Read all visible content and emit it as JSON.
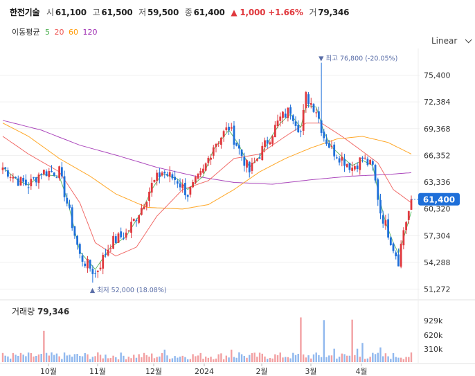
{
  "header": {
    "name": "한전기술",
    "open_label": "시",
    "open": "61,100",
    "high_label": "고",
    "high": "61,500",
    "low_label": "저",
    "low": "59,500",
    "close_label": "종",
    "close": "61,400",
    "change": "▲ 1,000 +1.66%",
    "volume_label": "거",
    "volume": "79,346"
  },
  "ma_legend": {
    "title": "이동평균",
    "ma5": "5",
    "ma20": "20",
    "ma60": "60",
    "ma120": "120"
  },
  "scale_selector": "Linear",
  "volume_panel": {
    "label": "거래량",
    "value": "79,346"
  },
  "colors": {
    "up": "#e0393e",
    "down": "#1e6fd9",
    "ma5": "#4caf50",
    "ma20": "#ef5350",
    "ma60": "#ff9800",
    "ma120": "#9c27b0",
    "price_tag": "#1e6fd9"
  },
  "chart_data": {
    "type": "candlestick",
    "y_ticks": [
      "75,400",
      "72,384",
      "69,368",
      "66,352",
      "63,336",
      "60,320",
      "57,304",
      "54,288",
      "51,272"
    ],
    "y_values": [
      75400,
      72384,
      69368,
      66352,
      63336,
      60320,
      57304,
      54288,
      51272
    ],
    "x_ticks": [
      "10월",
      "11월",
      "12월",
      "2024",
      "2월",
      "3월",
      "4월"
    ],
    "volume_ticks": [
      "929k",
      "620k",
      "310k"
    ],
    "current_price": "61,400",
    "annotations": {
      "high": "최고 76,800 (-20.05%)",
      "low": "최저 52,000 (18.08%)"
    },
    "close_anchors": [
      [
        0,
        65000
      ],
      [
        6,
        63500
      ],
      [
        10,
        63000
      ],
      [
        15,
        64500
      ],
      [
        22,
        64500
      ],
      [
        25,
        61000
      ],
      [
        30,
        55000
      ],
      [
        36,
        53000
      ],
      [
        42,
        56500
      ],
      [
        48,
        57500
      ],
      [
        54,
        60500
      ],
      [
        58,
        63000
      ],
      [
        62,
        64500
      ],
      [
        68,
        63500
      ],
      [
        72,
        62000
      ],
      [
        78,
        64500
      ],
      [
        82,
        67500
      ],
      [
        88,
        69500
      ],
      [
        92,
        67000
      ],
      [
        96,
        64500
      ],
      [
        100,
        66500
      ],
      [
        104,
        68500
      ],
      [
        108,
        70500
      ],
      [
        112,
        71500
      ],
      [
        116,
        69000
      ],
      [
        118,
        73000
      ],
      [
        122,
        71500
      ],
      [
        125,
        68500
      ],
      [
        128,
        67000
      ],
      [
        132,
        66000
      ],
      [
        136,
        65000
      ],
      [
        140,
        66000
      ],
      [
        144,
        65000
      ],
      [
        147,
        60000
      ],
      [
        149,
        58500
      ],
      [
        152,
        56000
      ],
      [
        154,
        54500
      ],
      [
        156,
        58000
      ],
      [
        158,
        60000
      ],
      [
        159,
        61400
      ]
    ],
    "ma_curves": {
      "ma5": [
        [
          0,
          65000
        ],
        [
          6,
          63500
        ],
        [
          10,
          63000
        ],
        [
          15,
          64200
        ],
        [
          22,
          64000
        ],
        [
          25,
          61500
        ],
        [
          30,
          55500
        ],
        [
          36,
          53500
        ],
        [
          42,
          56000
        ],
        [
          48,
          57200
        ],
        [
          54,
          60000
        ],
        [
          58,
          62500
        ],
        [
          62,
          64300
        ],
        [
          68,
          63700
        ],
        [
          72,
          62500
        ],
        [
          78,
          64000
        ],
        [
          82,
          67000
        ],
        [
          88,
          69200
        ],
        [
          92,
          67500
        ],
        [
          96,
          65000
        ],
        [
          100,
          66200
        ],
        [
          104,
          68200
        ],
        [
          108,
          70000
        ],
        [
          112,
          71000
        ],
        [
          116,
          69500
        ],
        [
          118,
          72000
        ],
        [
          122,
          71800
        ],
        [
          125,
          69000
        ],
        [
          128,
          67300
        ],
        [
          132,
          66200
        ],
        [
          136,
          65200
        ],
        [
          140,
          65800
        ],
        [
          144,
          65200
        ],
        [
          147,
          61000
        ],
        [
          149,
          58800
        ],
        [
          152,
          56500
        ],
        [
          154,
          55300
        ],
        [
          156,
          57000
        ],
        [
          158,
          59000
        ],
        [
          159,
          60000
        ]
      ],
      "ma20": [
        [
          0,
          68500
        ],
        [
          10,
          66500
        ],
        [
          22,
          64500
        ],
        [
          30,
          61000
        ],
        [
          36,
          56500
        ],
        [
          44,
          55000
        ],
        [
          52,
          56000
        ],
        [
          60,
          59500
        ],
        [
          70,
          62500
        ],
        [
          80,
          63500
        ],
        [
          90,
          66000
        ],
        [
          100,
          66500
        ],
        [
          110,
          68500
        ],
        [
          118,
          70000
        ],
        [
          124,
          70000
        ],
        [
          132,
          68500
        ],
        [
          140,
          66800
        ],
        [
          146,
          65500
        ],
        [
          152,
          62500
        ],
        [
          159,
          61000
        ]
      ],
      "ma60": [
        [
          0,
          70000
        ],
        [
          10,
          68500
        ],
        [
          22,
          66000
        ],
        [
          34,
          64000
        ],
        [
          44,
          62000
        ],
        [
          56,
          60500
        ],
        [
          70,
          60300
        ],
        [
          80,
          60800
        ],
        [
          90,
          62500
        ],
        [
          100,
          64500
        ],
        [
          110,
          66000
        ],
        [
          120,
          67200
        ],
        [
          130,
          68200
        ],
        [
          140,
          68500
        ],
        [
          150,
          67800
        ],
        [
          159,
          66500
        ]
      ],
      "ma120": [
        [
          0,
          70300
        ],
        [
          15,
          69200
        ],
        [
          30,
          67500
        ],
        [
          45,
          66300
        ],
        [
          60,
          65000
        ],
        [
          75,
          64000
        ],
        [
          90,
          63300
        ],
        [
          105,
          63100
        ],
        [
          120,
          63600
        ],
        [
          135,
          64000
        ],
        [
          150,
          64200
        ],
        [
          159,
          64400
        ]
      ]
    }
  }
}
